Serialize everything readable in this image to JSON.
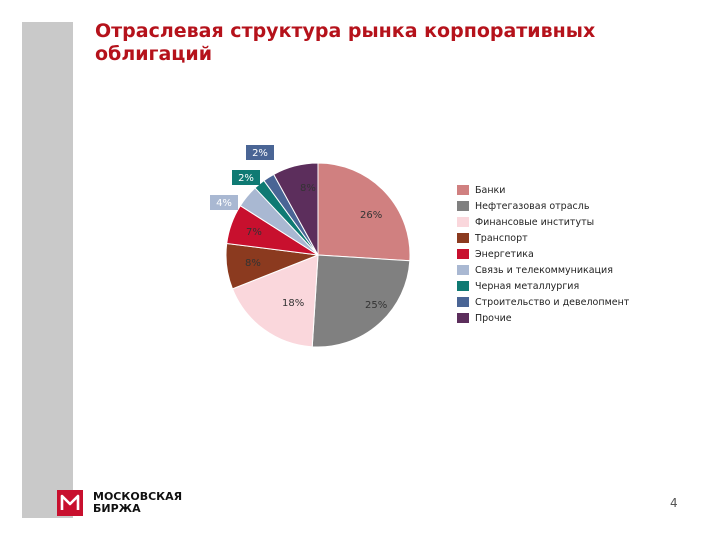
{
  "title": "Отраслевая структура рынка корпоративных облигаций",
  "chart_data": {
    "type": "pie",
    "slices": [
      {
        "name": "Банки",
        "value": 26,
        "label": "26%",
        "color": "#d08080"
      },
      {
        "name": "Нефтегазовая отрасль",
        "value": 25,
        "label": "25%",
        "color": "#808080"
      },
      {
        "name": "Финансовые институты",
        "value": 18,
        "label": "18%",
        "color": "#fad7dc"
      },
      {
        "name": "Транспорт",
        "value": 8,
        "label": "8%",
        "color": "#8b3a1f"
      },
      {
        "name": "Энергетика",
        "value": 7,
        "label": "7%",
        "color": "#c8102e"
      },
      {
        "name": "Связь и телекоммуникация",
        "value": 4,
        "label": "4%",
        "color": "#a9b8d2"
      },
      {
        "name": "Черная металлургия",
        "value": 2,
        "label": "2%",
        "color": "#0f7a73"
      },
      {
        "name": "Строительство и девелопмент",
        "value": 2,
        "label": "2%",
        "color": "#4a6595"
      },
      {
        "name": "Прочие",
        "value": 8,
        "label": "8%",
        "color": "#5c2e5c"
      }
    ],
    "legend_position": "right"
  },
  "logo": {
    "line1": "МОСКОВСКАЯ",
    "line2": "БИРЖА"
  },
  "page_number": "4"
}
